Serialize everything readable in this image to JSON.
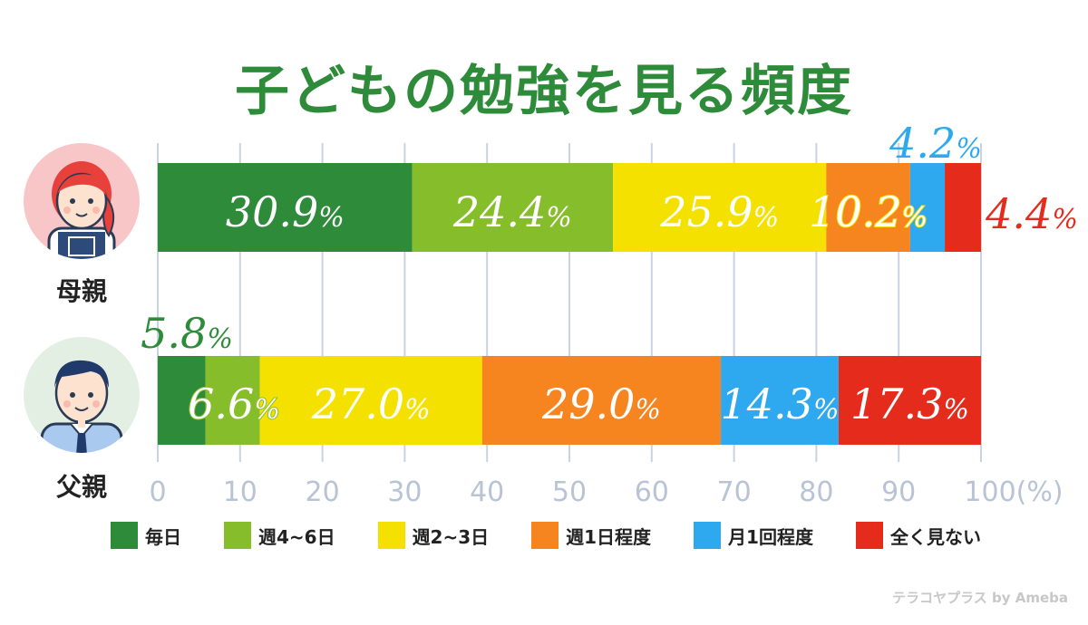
{
  "title": "子どもの勉強を見る頻度",
  "colors": {
    "title": "#2e8b3a",
    "axis_text": "#b8c4d6",
    "grid": "#c9d3e3"
  },
  "icons": {
    "mother": "mother-avatar-icon",
    "father": "father-avatar-icon"
  },
  "watermark": "テラコヤプラス by Ameba",
  "chart_data": {
    "type": "bar",
    "orientation": "horizontal",
    "stacked": true,
    "categories": [
      "母親",
      "父親"
    ],
    "xlim": [
      0,
      100
    ],
    "x_ticks": [
      0,
      10,
      20,
      30,
      40,
      50,
      60,
      70,
      80,
      90,
      100
    ],
    "x_tick_labels": [
      "0",
      "10",
      "20",
      "30",
      "40",
      "50",
      "60",
      "70",
      "80",
      "90",
      "100(%)"
    ],
    "grid": true,
    "legend_position": "bottom",
    "series": [
      {
        "name": "毎日",
        "color": "#2e8b3a",
        "values": [
          30.9,
          5.8
        ],
        "labels": [
          "30.9%",
          "5.8%"
        ]
      },
      {
        "name": "週4~6日",
        "color": "#86bd2a",
        "values": [
          24.4,
          6.6
        ],
        "labels": [
          "24.4%",
          "6.6%"
        ]
      },
      {
        "name": "週2~3日",
        "color": "#f5e100",
        "values": [
          25.9,
          27.0
        ],
        "labels": [
          "25.9%",
          "27.0%"
        ]
      },
      {
        "name": "週1日程度",
        "color": "#f6841f",
        "values": [
          10.2,
          29.0
        ],
        "labels": [
          "10.2%",
          "29.0%"
        ]
      },
      {
        "name": "月1回程度",
        "color": "#2ea9f0",
        "values": [
          4.2,
          14.3
        ],
        "labels": [
          "4.2%",
          "14.3%"
        ]
      },
      {
        "name": "全く見ない",
        "color": "#e52b1c",
        "values": [
          4.4,
          17.3
        ],
        "labels": [
          "4.4%",
          "17.3%"
        ]
      }
    ]
  }
}
